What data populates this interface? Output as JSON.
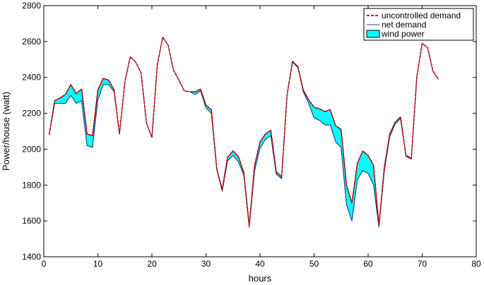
{
  "chart_data": {
    "type": "line",
    "xlabel": "hours",
    "ylabel": "Power/house (watt)",
    "xlim": [
      0,
      80
    ],
    "ylim": [
      1400,
      2800
    ],
    "xticks": [
      0,
      10,
      20,
      30,
      40,
      50,
      60,
      70,
      80
    ],
    "yticks": [
      1400,
      1600,
      1800,
      2000,
      2200,
      2400,
      2600,
      2800
    ],
    "grid": false,
    "legend_position": "top-right",
    "legend": [
      "uncontrolled demand",
      "net demand",
      "wind power"
    ],
    "colors": {
      "uncontrolled": "#e00000",
      "net": "#1f4e9e",
      "wind": "#00ffff",
      "outline": "#000000"
    },
    "x": [
      1,
      2,
      3,
      4,
      5,
      6,
      7,
      8,
      9,
      10,
      11,
      12,
      13,
      14,
      15,
      16,
      17,
      18,
      19,
      20,
      21,
      22,
      23,
      24,
      25,
      26,
      27,
      28,
      29,
      30,
      31,
      32,
      33,
      34,
      35,
      36,
      37,
      38,
      39,
      40,
      41,
      42,
      43,
      44,
      45,
      46,
      47,
      48,
      49,
      50,
      51,
      52,
      53,
      54,
      55,
      56,
      57,
      58,
      59,
      60,
      61,
      62,
      63,
      64,
      65,
      66,
      67,
      68,
      69,
      70,
      71,
      72,
      73
    ],
    "series": [
      {
        "name": "uncontrolled demand",
        "values": [
          2080,
          2270,
          2285,
          2305,
          2360,
          2310,
          2335,
          2085,
          2075,
          2330,
          2395,
          2385,
          2330,
          2085,
          2375,
          2515,
          2485,
          2425,
          2145,
          2065,
          2470,
          2625,
          2580,
          2440,
          2385,
          2325,
          2320,
          2320,
          2335,
          2245,
          2220,
          1890,
          1775,
          1955,
          1990,
          1960,
          1870,
          1575,
          1910,
          2040,
          2085,
          2105,
          1875,
          1845,
          2300,
          2490,
          2460,
          2330,
          2275,
          2235,
          2225,
          2210,
          2220,
          2130,
          2110,
          1800,
          1700,
          1920,
          1990,
          1965,
          1910,
          1575,
          1900,
          2085,
          2150,
          2180,
          1965,
          1950,
          2400,
          2590,
          2565,
          2435,
          2390
        ]
      },
      {
        "name": "net demand",
        "values": [
          2080,
          2255,
          2255,
          2255,
          2300,
          2255,
          2270,
          2020,
          2010,
          2275,
          2360,
          2360,
          2320,
          2085,
          2375,
          2515,
          2485,
          2425,
          2145,
          2065,
          2470,
          2625,
          2580,
          2440,
          2385,
          2325,
          2320,
          2305,
          2325,
          2230,
          2200,
          1885,
          1765,
          1935,
          1965,
          1930,
          1855,
          1565,
          1880,
          2005,
          2055,
          2075,
          1860,
          1835,
          2300,
          2485,
          2455,
          2320,
          2255,
          2175,
          2160,
          2135,
          2135,
          2040,
          2010,
          1690,
          1600,
          1830,
          1880,
          1865,
          1800,
          1565,
          1880,
          2070,
          2140,
          2170,
          1960,
          1945,
          2400,
          2590,
          2565,
          2435,
          2390
        ]
      }
    ]
  }
}
